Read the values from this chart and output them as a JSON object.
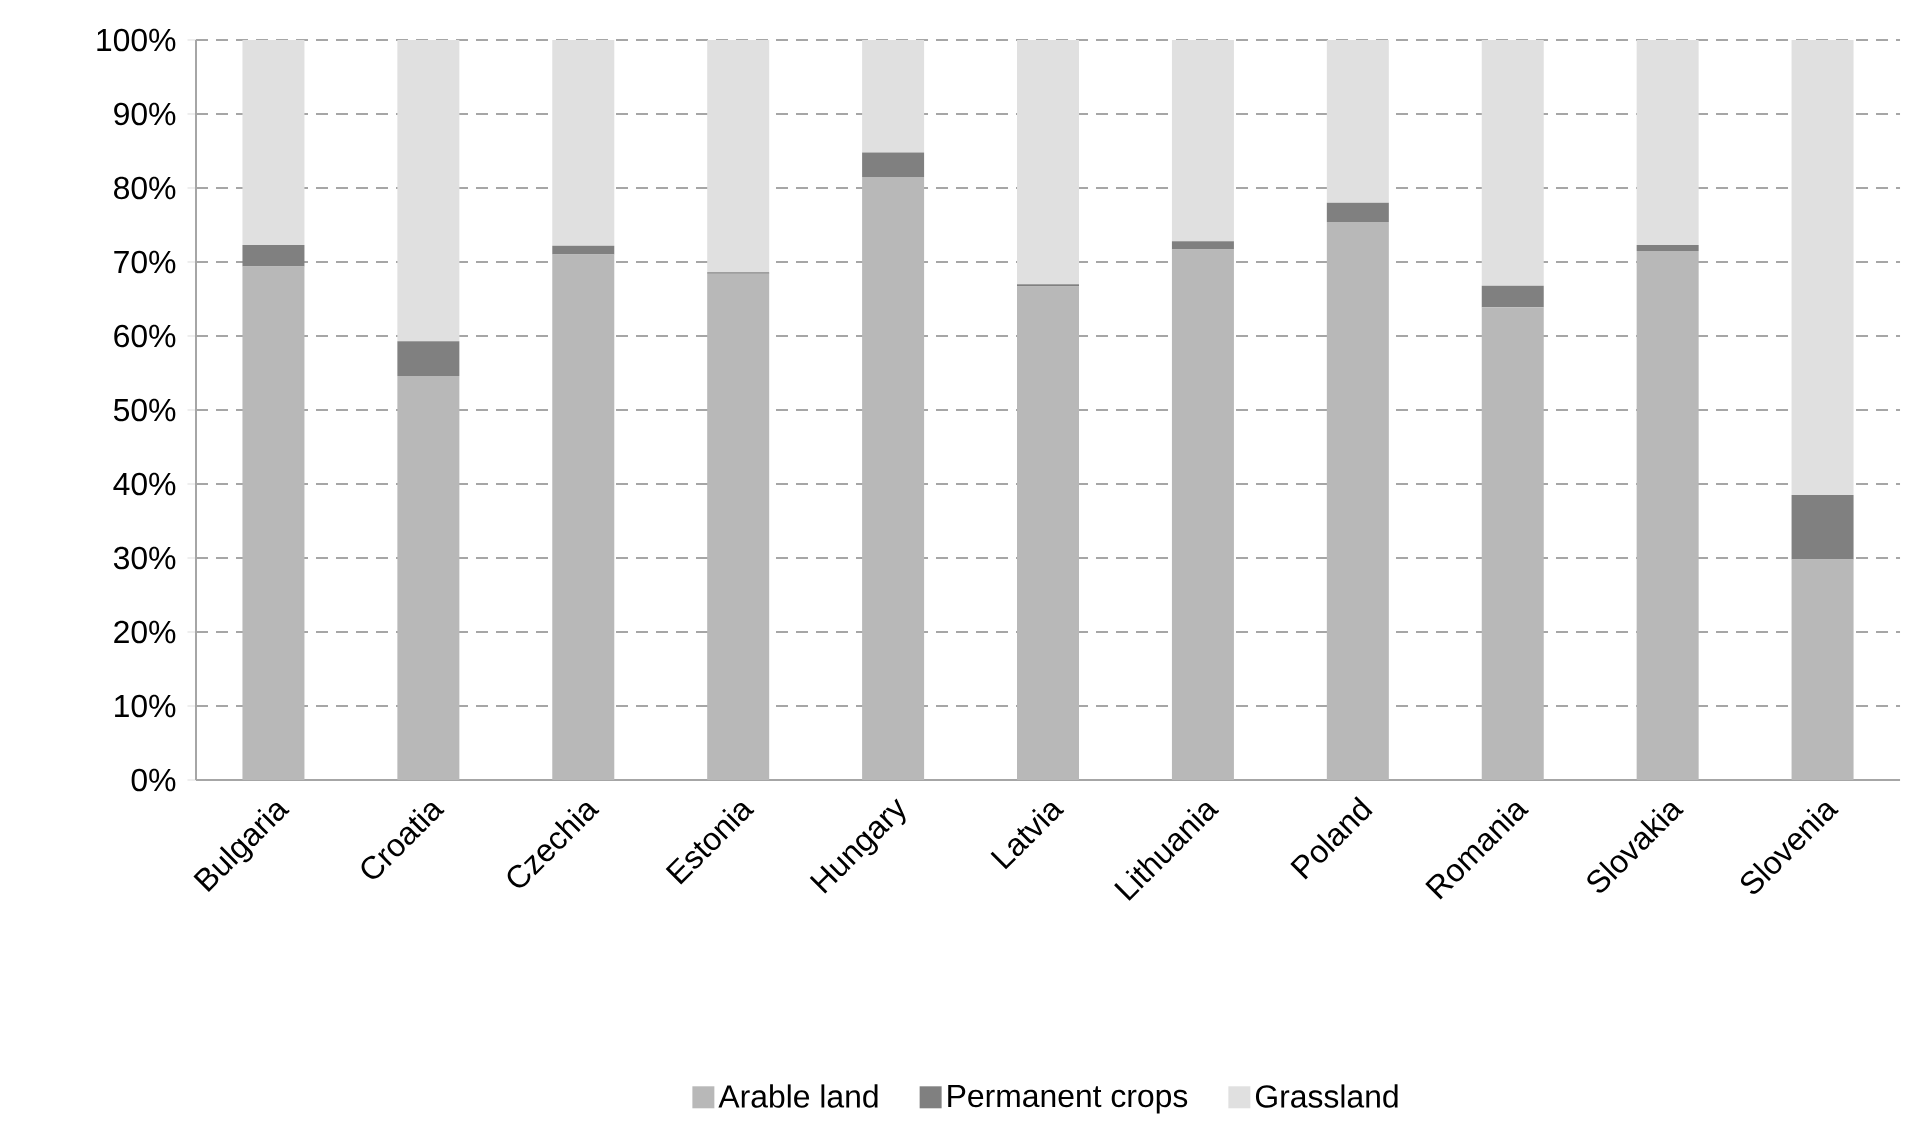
{
  "chart_data": {
    "type": "bar",
    "stacked": true,
    "categories": [
      "Bulgaria",
      "Croatia",
      "Czechia",
      "Estonia",
      "Hungary",
      "Latvia",
      "Lithuania",
      "Poland",
      "Romania",
      "Slovakia",
      "Slovenia"
    ],
    "series": [
      {
        "name": "Arable land",
        "color": "#b8b8b8",
        "values": [
          69.4,
          54.6,
          71.0,
          68.4,
          81.5,
          66.7,
          71.7,
          75.4,
          63.9,
          71.5,
          29.8
        ]
      },
      {
        "name": "Permanent crops",
        "color": "#808080",
        "values": [
          2.9,
          4.7,
          1.2,
          0.2,
          3.3,
          0.3,
          1.1,
          2.6,
          2.9,
          0.8,
          8.7
        ]
      },
      {
        "name": "Grassland",
        "color": "#e0e0e0",
        "values": [
          27.7,
          40.7,
          27.8,
          31.4,
          15.2,
          33.0,
          27.2,
          22.0,
          33.2,
          27.7,
          61.5
        ]
      }
    ],
    "ylim": [
      0,
      100
    ],
    "yticks": [
      {
        "value": 0,
        "label": "0%"
      },
      {
        "value": 10,
        "label": "10%"
      },
      {
        "value": 20,
        "label": "20%"
      },
      {
        "value": 30,
        "label": "30%"
      },
      {
        "value": 40,
        "label": "40%"
      },
      {
        "value": 50,
        "label": "50%"
      },
      {
        "value": 60,
        "label": "60%"
      },
      {
        "value": 70,
        "label": "70%"
      },
      {
        "value": 80,
        "label": "80%"
      },
      {
        "value": 90,
        "label": "90%"
      },
      {
        "value": 100,
        "label": "100%"
      }
    ],
    "grid": "y",
    "legend": "bottom"
  }
}
